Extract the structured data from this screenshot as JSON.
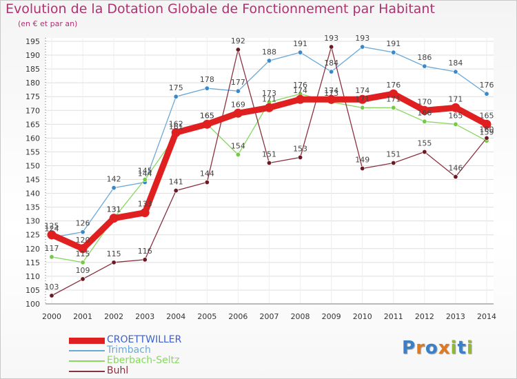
{
  "title": "Evolution de la Dotation Globale de Fonctionnement par Habitant",
  "subtitle": "(en € et par an)",
  "colors": {
    "title": "#b03070",
    "axis_text": "#333333",
    "grid": "#dddddd",
    "axis": "#777777"
  },
  "logo": {
    "text": "Proxiti",
    "letter_colors": [
      "#3a7fc8",
      "#e07a20",
      "#3a7fc8",
      "#e07a20",
      "#90b830",
      "#3a7fc8",
      "#90b830"
    ]
  },
  "chart_data": {
    "type": "line",
    "x": [
      "2000",
      "2001",
      "2002",
      "2003",
      "2004",
      "2005",
      "2006",
      "2007",
      "2008",
      "2009",
      "2010",
      "2011",
      "2012",
      "2013",
      "2014"
    ],
    "ylim": [
      100,
      195
    ],
    "yticks": [
      100,
      105,
      110,
      115,
      120,
      125,
      130,
      135,
      140,
      145,
      150,
      155,
      160,
      165,
      170,
      175,
      180,
      185,
      190,
      195
    ],
    "grid": true,
    "legend_position": "bottom-left",
    "series": [
      {
        "name": "CROETTWILLER",
        "color": "#e02020",
        "legend_color": "#3a5fcd",
        "emphasis": true,
        "values": [
          125,
          120,
          131,
          133,
          162,
          165,
          169,
          171,
          174,
          174,
          174,
          176,
          170,
          171,
          165
        ]
      },
      {
        "name": "Trimbach",
        "color": "#6aa8d8",
        "marker": "#3a88c8",
        "values": [
          124,
          126,
          142,
          144,
          175,
          178,
          177,
          188,
          191,
          184,
          193,
          191,
          186,
          184,
          176
        ]
      },
      {
        "name": "Eberbach-Seltz",
        "color": "#88d860",
        "marker": "#78c848",
        "values": [
          117,
          115,
          131,
          145,
          161,
          165,
          154,
          173,
          176,
          173,
          171,
          171,
          166,
          165,
          159
        ]
      },
      {
        "name": "Buhl",
        "color": "#8a3040",
        "marker": "#6a1a22",
        "values": [
          103,
          109,
          115,
          116,
          141,
          144,
          192,
          151,
          153,
          193,
          149,
          151,
          155,
          146,
          160
        ]
      }
    ]
  }
}
